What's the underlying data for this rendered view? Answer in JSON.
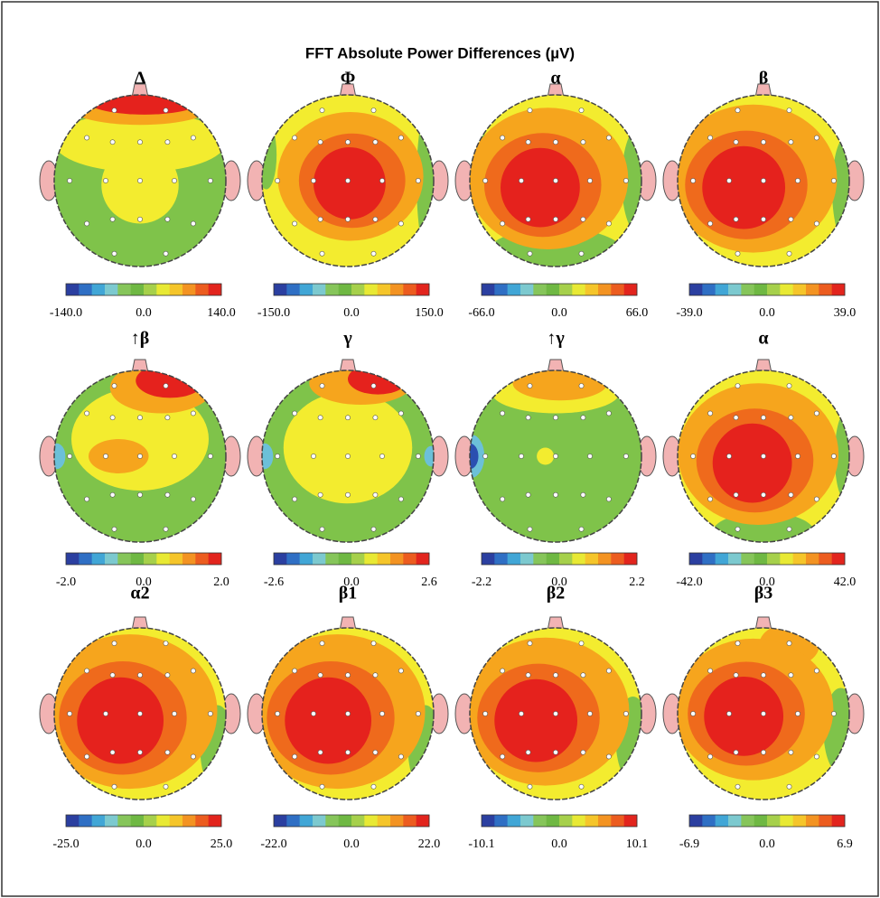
{
  "title": "FFT Absolute Power Differences (µV)",
  "panels": [
    {
      "label": "Δ",
      "scale": {
        "min": "-140.0",
        "mid": "0.0",
        "max": "140.0"
      }
    },
    {
      "label": "Φ",
      "scale": {
        "min": "-150.0",
        "mid": "0.0",
        "max": "150.0"
      }
    },
    {
      "label": "α",
      "scale": {
        "min": "-66.0",
        "mid": "0.0",
        "max": "66.0"
      }
    },
    {
      "label": "β",
      "scale": {
        "min": "-39.0",
        "mid": "0.0",
        "max": "39.0"
      }
    },
    {
      "label": "↑β",
      "scale": {
        "min": "-2.0",
        "mid": "0.0",
        "max": "2.0"
      }
    },
    {
      "label": "γ",
      "scale": {
        "min": "-2.6",
        "mid": "0.0",
        "max": "2.6"
      }
    },
    {
      "label": "↑γ",
      "scale": {
        "min": "-2.2",
        "mid": "0.0",
        "max": "2.2"
      }
    },
    {
      "label": "α",
      "scale": {
        "min": "-42.0",
        "mid": "0.0",
        "max": "42.0"
      }
    },
    {
      "label": "α2",
      "scale": {
        "min": "-25.0",
        "mid": "0.0",
        "max": "25.0"
      }
    },
    {
      "label": "β1",
      "scale": {
        "min": "-22.0",
        "mid": "0.0",
        "max": "22.0"
      }
    },
    {
      "label": "β2",
      "scale": {
        "min": "-10.1",
        "mid": "0.0",
        "max": "10.1"
      }
    },
    {
      "label": "β3",
      "scale": {
        "min": "-6.9",
        "mid": "0.0",
        "max": "6.9"
      }
    }
  ]
}
